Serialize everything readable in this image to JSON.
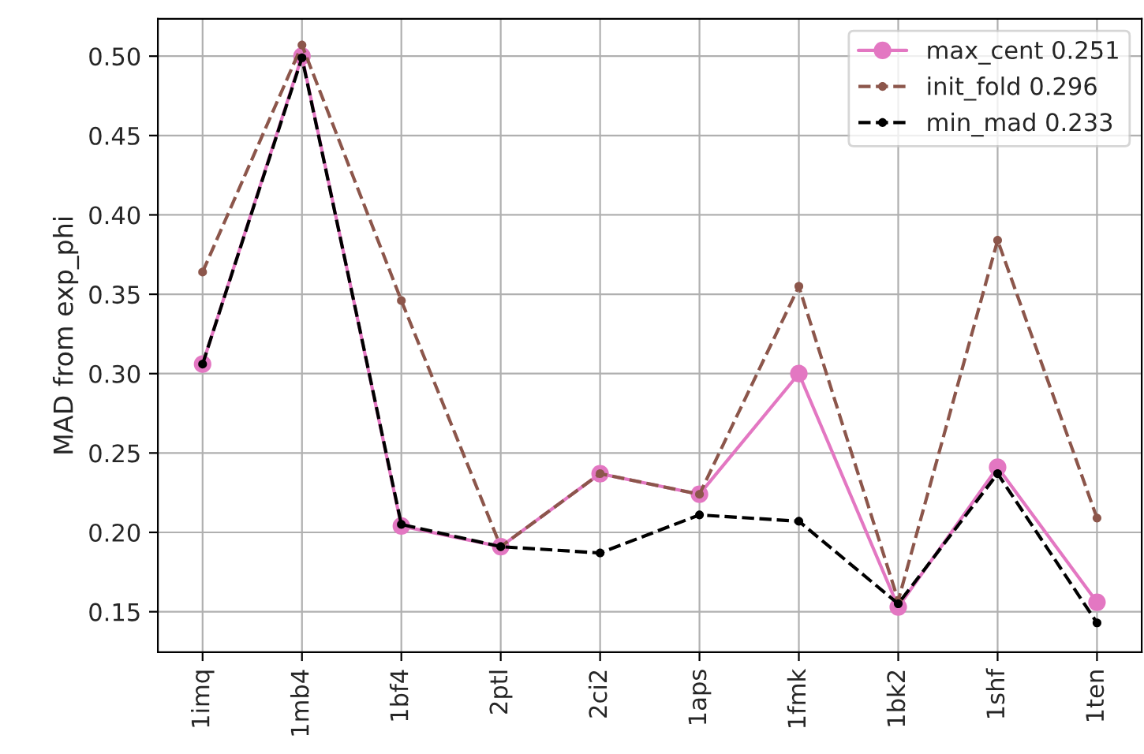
{
  "chart_data": {
    "type": "line",
    "ylabel": "MAD from exp_phi",
    "categories": [
      "1imq",
      "1mb4",
      "1bf4",
      "2ptl",
      "2ci2",
      "1aps",
      "1fmk",
      "1bk2",
      "1shf",
      "1ten"
    ],
    "series": [
      {
        "name": "max_cent 0.251",
        "color": "#e377c2",
        "line_style": "solid",
        "marker": "circle",
        "values": [
          0.306,
          0.5,
          0.204,
          0.191,
          0.237,
          0.224,
          0.3,
          0.153,
          0.241,
          0.156
        ]
      },
      {
        "name": "init_fold 0.296",
        "color": "#8c564b",
        "line_style": "dashed",
        "marker": "circle",
        "values": [
          0.364,
          0.507,
          0.346,
          0.191,
          0.237,
          0.224,
          0.355,
          0.157,
          0.384,
          0.209
        ]
      },
      {
        "name": "min_mad 0.233",
        "color": "#000000",
        "line_style": "dashed",
        "marker": "circle",
        "values": [
          0.306,
          0.499,
          0.205,
          0.191,
          0.187,
          0.211,
          0.207,
          0.155,
          0.237,
          0.143
        ]
      }
    ],
    "ylim": [
      0.1245,
      0.5235
    ],
    "yticks": [
      0.15,
      {
        "value": 0.2,
        "label": "0.20"
      },
      0.25,
      {
        "value": 0.3,
        "label": "0.30"
      },
      0.35,
      {
        "value": 0.4,
        "label": "0.40"
      },
      0.45,
      {
        "value": 0.5,
        "label": "0.50"
      }
    ],
    "grid": true,
    "legend": "top right"
  }
}
